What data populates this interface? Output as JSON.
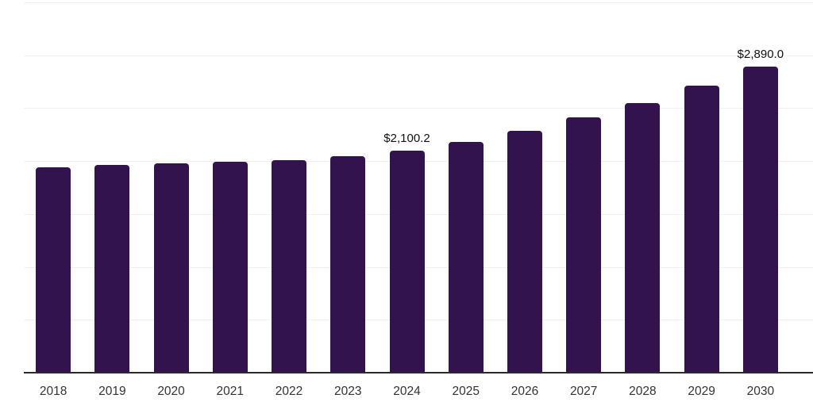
{
  "chart_data": {
    "type": "bar",
    "title": "",
    "xlabel": "",
    "ylabel": "",
    "categories": [
      "2018",
      "2019",
      "2020",
      "2021",
      "2022",
      "2023",
      "2024",
      "2025",
      "2026",
      "2027",
      "2028",
      "2029",
      "2030"
    ],
    "values": [
      1940,
      1965,
      1975,
      1990,
      2010,
      2045,
      2100.2,
      2180,
      2285,
      2410,
      2545,
      2710,
      2890
    ],
    "data_labels": [
      {
        "category": "2024",
        "text": "$2,100.2"
      },
      {
        "category": "2030",
        "text": "$2,890.0"
      }
    ],
    "ylim": [
      0,
      3500
    ],
    "grid_step": 500,
    "grid": true,
    "legend": false,
    "y_axis_labels_visible": false,
    "colors": {
      "bar": "#33134D",
      "gridline": "#f1f1f3",
      "axis_line": "#2b2b2b",
      "tick_label": "#333333",
      "data_label": "#111111",
      "background": "#ffffff"
    }
  }
}
